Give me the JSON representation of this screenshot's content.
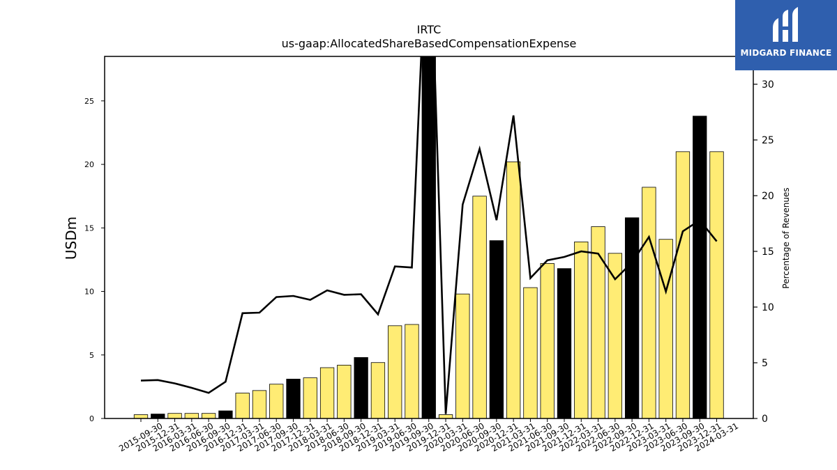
{
  "chart_data": {
    "type": "bar",
    "title": "IRTC",
    "subtitle": "us-gaap:AllocatedShareBasedCompensationExpense",
    "ylabel": "USDm",
    "y2label": "Percentage of Revenues",
    "ylim": [
      0,
      28.5
    ],
    "y2lim": [
      0,
      32.5
    ],
    "yticks": [
      0,
      5,
      10,
      15,
      20,
      25
    ],
    "y2ticks": [
      0,
      5,
      10,
      15,
      20,
      25,
      30
    ],
    "categories": [
      "2015-09-30",
      "2015-12-31",
      "2016-03-31",
      "2016-06-30",
      "2016-09-30",
      "2016-12-31",
      "2017-03-31",
      "2017-06-30",
      "2017-09-30",
      "2017-12-31",
      "2018-03-31",
      "2018-06-30",
      "2018-09-30",
      "2018-12-31",
      "2019-03-31",
      "2019-06-30",
      "2019-09-30",
      "2019-12-31",
      "2020-03-31",
      "2020-06-30",
      "2020-09-30",
      "2020-12-31",
      "2021-03-31",
      "2021-06-30",
      "2021-09-30",
      "2021-12-31",
      "2022-03-31",
      "2022-06-30",
      "2022-09-30",
      "2022-12-31",
      "2023-03-31",
      "2023-06-30",
      "2023-09-30",
      "2023-12-31",
      "2024-03-31"
    ],
    "series": [
      {
        "type": "bar",
        "axis": "left",
        "values": [
          0.3,
          0.35,
          0.4,
          0.4,
          0.4,
          0.6,
          2.0,
          2.2,
          2.7,
          3.1,
          3.2,
          4.0,
          4.2,
          4.8,
          4.4,
          7.3,
          7.4,
          29.0,
          0.3,
          9.8,
          17.5,
          14.0,
          20.2,
          10.3,
          12.2,
          11.8,
          13.9,
          15.1,
          13.0,
          15.8,
          18.2,
          14.1,
          21.0,
          23.8,
          21.0
        ],
        "highlight": [
          false,
          true,
          false,
          false,
          false,
          true,
          false,
          false,
          false,
          true,
          false,
          false,
          false,
          true,
          false,
          false,
          false,
          true,
          false,
          false,
          false,
          true,
          false,
          false,
          false,
          true,
          false,
          false,
          false,
          true,
          false,
          false,
          false,
          true,
          false
        ]
      },
      {
        "type": "line",
        "axis": "right",
        "values": [
          3.4,
          3.45,
          3.15,
          2.75,
          2.3,
          3.3,
          9.45,
          9.5,
          10.9,
          11.0,
          10.65,
          11.5,
          11.1,
          11.15,
          9.35,
          13.65,
          13.55,
          48.0,
          0.4,
          19.2,
          24.2,
          17.8,
          27.2,
          12.6,
          14.2,
          14.5,
          15.0,
          14.8,
          12.5,
          14.0,
          16.3,
          11.4,
          16.8,
          17.8,
          15.9
        ]
      }
    ],
    "colors": {
      "bar": "#ffec74",
      "bar_highlight": "#000000",
      "line": "#000000",
      "axis": "#000000"
    },
    "grid": false
  },
  "logo": {
    "text": "MIDGARD FINANCE",
    "icon": "midgard-logo-icon",
    "background": "#2f5fae"
  }
}
